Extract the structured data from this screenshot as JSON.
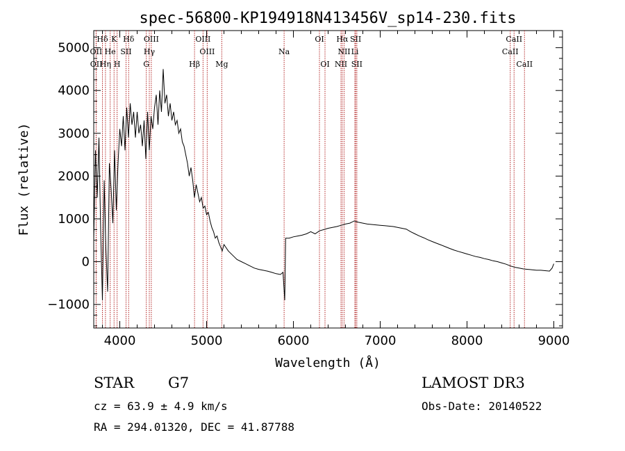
{
  "chart_data": {
    "type": "line",
    "title": "spec-56800-KP194918N413456V_sp14-230.fits",
    "xlabel": "Wavelength (Å)",
    "ylabel": "Flux (relative)",
    "xlim": [
      3700,
      9100
    ],
    "ylim": [
      -1550,
      5400
    ],
    "xticks": [
      4000,
      5000,
      6000,
      7000,
      8000,
      9000
    ],
    "yticks": [
      -1000,
      0,
      1000,
      2000,
      3000,
      4000,
      5000
    ],
    "grid": false,
    "series": [
      {
        "color": "#000000",
        "points": [
          [
            3700,
            500
          ],
          [
            3720,
            2600
          ],
          [
            3740,
            1500
          ],
          [
            3760,
            2900
          ],
          [
            3780,
            700
          ],
          [
            3800,
            -900
          ],
          [
            3820,
            1900
          ],
          [
            3840,
            300
          ],
          [
            3860,
            -700
          ],
          [
            3880,
            2300
          ],
          [
            3900,
            1700
          ],
          [
            3920,
            900
          ],
          [
            3940,
            2600
          ],
          [
            3960,
            1200
          ],
          [
            3980,
            2300
          ],
          [
            4000,
            3100
          ],
          [
            4020,
            2700
          ],
          [
            4040,
            3400
          ],
          [
            4060,
            2600
          ],
          [
            4080,
            3600
          ],
          [
            4100,
            2900
          ],
          [
            4120,
            3700
          ],
          [
            4140,
            3200
          ],
          [
            4160,
            3500
          ],
          [
            4180,
            2900
          ],
          [
            4200,
            3500
          ],
          [
            4220,
            3000
          ],
          [
            4240,
            3200
          ],
          [
            4260,
            2700
          ],
          [
            4280,
            3300
          ],
          [
            4300,
            2400
          ],
          [
            4320,
            3500
          ],
          [
            4340,
            2600
          ],
          [
            4360,
            3400
          ],
          [
            4380,
            3100
          ],
          [
            4400,
            3600
          ],
          [
            4420,
            3900
          ],
          [
            4440,
            3200
          ],
          [
            4460,
            4000
          ],
          [
            4480,
            3500
          ],
          [
            4500,
            4500
          ],
          [
            4520,
            3700
          ],
          [
            4540,
            3900
          ],
          [
            4560,
            3400
          ],
          [
            4580,
            3700
          ],
          [
            4600,
            3300
          ],
          [
            4620,
            3500
          ],
          [
            4640,
            3200
          ],
          [
            4660,
            3300
          ],
          [
            4680,
            3000
          ],
          [
            4700,
            3100
          ],
          [
            4720,
            2800
          ],
          [
            4740,
            2700
          ],
          [
            4760,
            2500
          ],
          [
            4780,
            2300
          ],
          [
            4800,
            2000
          ],
          [
            4820,
            2200
          ],
          [
            4840,
            1900
          ],
          [
            4860,
            1500
          ],
          [
            4880,
            1800
          ],
          [
            4900,
            1600
          ],
          [
            4920,
            1400
          ],
          [
            4940,
            1500
          ],
          [
            4960,
            1250
          ],
          [
            4980,
            1300
          ],
          [
            5000,
            1100
          ],
          [
            5020,
            1150
          ],
          [
            5040,
            950
          ],
          [
            5060,
            800
          ],
          [
            5080,
            700
          ],
          [
            5100,
            550
          ],
          [
            5120,
            600
          ],
          [
            5140,
            450
          ],
          [
            5160,
            350
          ],
          [
            5180,
            250
          ],
          [
            5200,
            400
          ],
          [
            5250,
            250
          ],
          [
            5300,
            150
          ],
          [
            5350,
            50
          ],
          [
            5400,
            0
          ],
          [
            5450,
            -50
          ],
          [
            5500,
            -100
          ],
          [
            5550,
            -150
          ],
          [
            5600,
            -180
          ],
          [
            5650,
            -200
          ],
          [
            5700,
            -220
          ],
          [
            5750,
            -250
          ],
          [
            5800,
            -280
          ],
          [
            5850,
            -300
          ],
          [
            5880,
            -250
          ],
          [
            5900,
            -900
          ],
          [
            5905,
            -300
          ],
          [
            5910,
            550
          ],
          [
            5950,
            550
          ],
          [
            6000,
            580
          ],
          [
            6050,
            600
          ],
          [
            6100,
            620
          ],
          [
            6150,
            650
          ],
          [
            6200,
            700
          ],
          [
            6250,
            650
          ],
          [
            6300,
            720
          ],
          [
            6350,
            750
          ],
          [
            6400,
            780
          ],
          [
            6450,
            800
          ],
          [
            6500,
            820
          ],
          [
            6550,
            850
          ],
          [
            6600,
            880
          ],
          [
            6650,
            900
          ],
          [
            6700,
            950
          ],
          [
            6750,
            920
          ],
          [
            6800,
            900
          ],
          [
            6850,
            880
          ],
          [
            6900,
            870
          ],
          [
            6950,
            860
          ],
          [
            7000,
            850
          ],
          [
            7050,
            840
          ],
          [
            7100,
            830
          ],
          [
            7150,
            820
          ],
          [
            7200,
            800
          ],
          [
            7250,
            780
          ],
          [
            7300,
            760
          ],
          [
            7350,
            700
          ],
          [
            7400,
            650
          ],
          [
            7450,
            600
          ],
          [
            7500,
            560
          ],
          [
            7550,
            510
          ],
          [
            7600,
            470
          ],
          [
            7650,
            430
          ],
          [
            7700,
            390
          ],
          [
            7750,
            350
          ],
          [
            7800,
            310
          ],
          [
            7850,
            270
          ],
          [
            7900,
            240
          ],
          [
            7950,
            210
          ],
          [
            8000,
            180
          ],
          [
            8050,
            150
          ],
          [
            8100,
            120
          ],
          [
            8150,
            100
          ],
          [
            8200,
            70
          ],
          [
            8250,
            50
          ],
          [
            8300,
            20
          ],
          [
            8350,
            0
          ],
          [
            8400,
            -30
          ],
          [
            8450,
            -60
          ],
          [
            8500,
            -100
          ],
          [
            8550,
            -130
          ],
          [
            8600,
            -150
          ],
          [
            8650,
            -170
          ],
          [
            8700,
            -180
          ],
          [
            8750,
            -190
          ],
          [
            8800,
            -200
          ],
          [
            8850,
            -200
          ],
          [
            8900,
            -210
          ],
          [
            8950,
            -220
          ],
          [
            8980,
            -150
          ],
          [
            9000,
            -50
          ]
        ]
      }
    ],
    "line_markers": [
      {
        "label": "Hδ",
        "x": 3800,
        "row": 0
      },
      {
        "label": "K",
        "x": 3934,
        "row": 0
      },
      {
        "label": "Hδ",
        "x": 4102,
        "row": 0
      },
      {
        "label": "OIII",
        "x": 4363,
        "row": 0
      },
      {
        "label": "OIII",
        "x": 4959,
        "row": 0
      },
      {
        "label": "OI",
        "x": 6300,
        "row": 0
      },
      {
        "label": "Hα",
        "x": 6563,
        "row": 0
      },
      {
        "label": "SII",
        "x": 6717,
        "row": 0
      },
      {
        "label": "CaII",
        "x": 8542,
        "row": 0
      },
      {
        "label": "OII",
        "x": 3727,
        "row": 1
      },
      {
        "label": "He",
        "x": 3889,
        "row": 1
      },
      {
        "label": "SII",
        "x": 4072,
        "row": 1
      },
      {
        "label": "Hγ",
        "x": 4340,
        "row": 1
      },
      {
        "label": "OIII",
        "x": 5007,
        "row": 1
      },
      {
        "label": "Na",
        "x": 5893,
        "row": 1
      },
      {
        "label": "NII",
        "x": 6584,
        "row": 1
      },
      {
        "label": "Li",
        "x": 6708,
        "row": 1
      },
      {
        "label": "CaII",
        "x": 8498,
        "row": 1
      },
      {
        "label": "OII",
        "x": 3729,
        "row": 2
      },
      {
        "label": "Hη",
        "x": 3835,
        "row": 2
      },
      {
        "label": "H",
        "x": 3969,
        "row": 2
      },
      {
        "label": "G",
        "x": 4305,
        "row": 2
      },
      {
        "label": "Hβ",
        "x": 4861,
        "row": 2
      },
      {
        "label": "Mg",
        "x": 5175,
        "row": 2
      },
      {
        "label": "OI",
        "x": 6364,
        "row": 2
      },
      {
        "label": "NII",
        "x": 6548,
        "row": 2
      },
      {
        "label": "SII",
        "x": 6731,
        "row": 2
      },
      {
        "label": "CaII",
        "x": 8662,
        "row": 2
      }
    ],
    "marker_color": "#b22222"
  },
  "info": {
    "class": "STAR",
    "subclass": "G7",
    "survey": "LAMOST DR3",
    "cz": "cz = 63.9 ± 4.9 km/s",
    "obs_date": "Obs-Date: 20140522",
    "coords": "RA = 294.01320, DEC =  41.87788"
  }
}
